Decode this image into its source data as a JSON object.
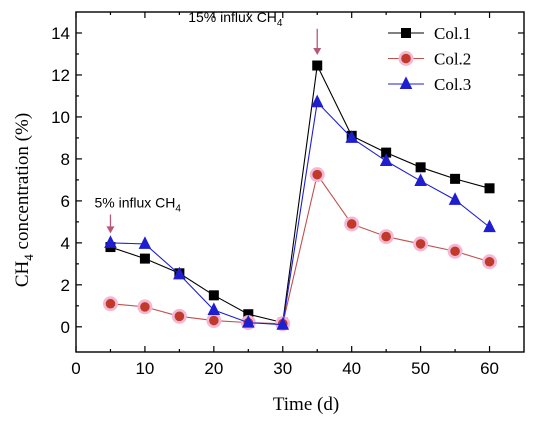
{
  "chart_data": {
    "type": "line",
    "xlabel": "Time (d)",
    "ylabel": {
      "prefix": "CH",
      "sub": "4",
      "suffix": " concentration (%)"
    },
    "xlim": [
      0,
      65
    ],
    "ylim": [
      -1.2,
      15
    ],
    "xticks": [
      0,
      10,
      20,
      30,
      40,
      50,
      60
    ],
    "yticks": [
      0,
      2,
      4,
      6,
      8,
      10,
      12,
      14
    ],
    "grid": false,
    "legend_position": "top-right",
    "series": [
      {
        "name": "Col.1",
        "marker": "square",
        "line_color": "#000000",
        "marker_fill": "#000000",
        "x": [
          5,
          10,
          15,
          20,
          25,
          30,
          35,
          40,
          45,
          50,
          55,
          60
        ],
        "y": [
          3.8,
          3.25,
          2.55,
          1.5,
          0.6,
          0.2,
          12.45,
          9.1,
          8.3,
          7.6,
          7.05,
          6.6
        ]
      },
      {
        "name": "Col.2",
        "marker": "circle",
        "line_color": "#c0504d",
        "marker_fill": "#c0392b",
        "marker_halo": "#f4b8d4",
        "x": [
          5,
          10,
          15,
          20,
          25,
          30,
          35,
          40,
          45,
          50,
          55,
          60
        ],
        "y": [
          1.1,
          0.95,
          0.5,
          0.3,
          0.2,
          0.15,
          7.25,
          4.9,
          4.3,
          3.95,
          3.6,
          3.1
        ]
      },
      {
        "name": "Col.3",
        "marker": "triangle",
        "line_color": "#1f1fd0",
        "marker_fill": "#1f1fd0",
        "x": [
          5,
          10,
          15,
          20,
          25,
          30,
          35,
          40,
          45,
          50,
          55,
          60
        ],
        "y": [
          4.0,
          3.95,
          2.5,
          0.8,
          0.2,
          0.1,
          10.7,
          9.0,
          7.9,
          6.95,
          6.05,
          4.75
        ]
      }
    ],
    "annotations": [
      {
        "text": "5% influx CH",
        "sub": "4",
        "x": 5,
        "arrow_from": 5.35,
        "arrow_to": 4.45
      },
      {
        "text": "15% influx CH",
        "sub": "4",
        "x": 35,
        "arrow_from": 14.2,
        "arrow_to": 12.95
      }
    ],
    "annotation_arrow_color": "#b5587a"
  }
}
